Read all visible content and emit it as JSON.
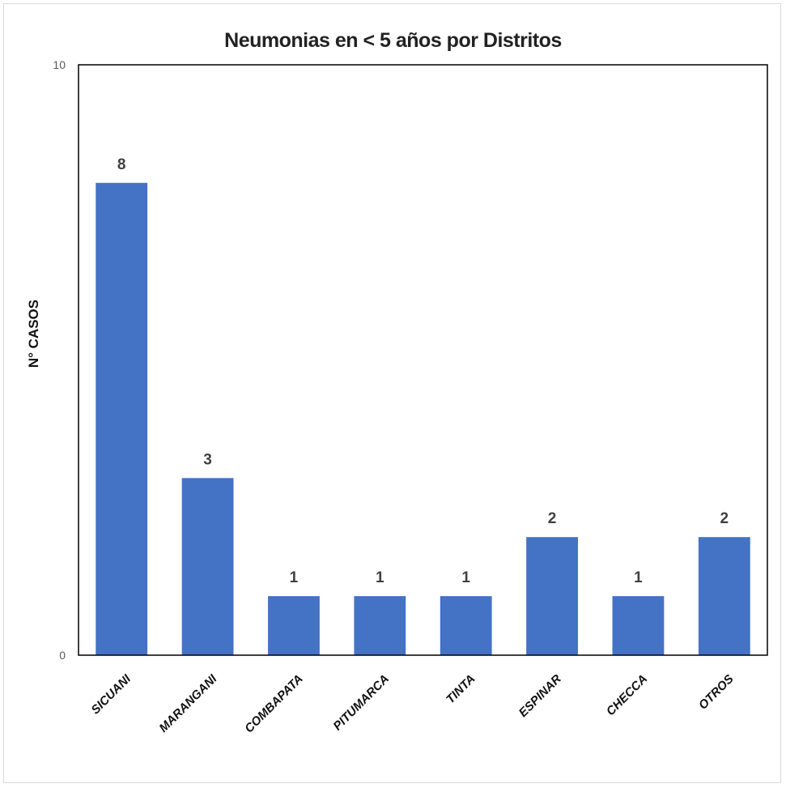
{
  "chart_data": {
    "type": "bar",
    "title": "Neumonias en < 5 años por Distritos",
    "xlabel": "",
    "ylabel": "N° CASOS",
    "ylim": [
      0,
      10
    ],
    "yticks": [
      "0",
      "10"
    ],
    "categories": [
      "SICUANI",
      "MARANGANI",
      "COMBAPATA",
      "PITUMARCA",
      "TINTA",
      "ESPINAR",
      "CHECCA",
      "OTROS"
    ],
    "values": [
      8,
      3,
      1,
      1,
      1,
      2,
      1,
      2
    ],
    "bar_color": "#4472c4",
    "grid": false,
    "legend": "none"
  }
}
